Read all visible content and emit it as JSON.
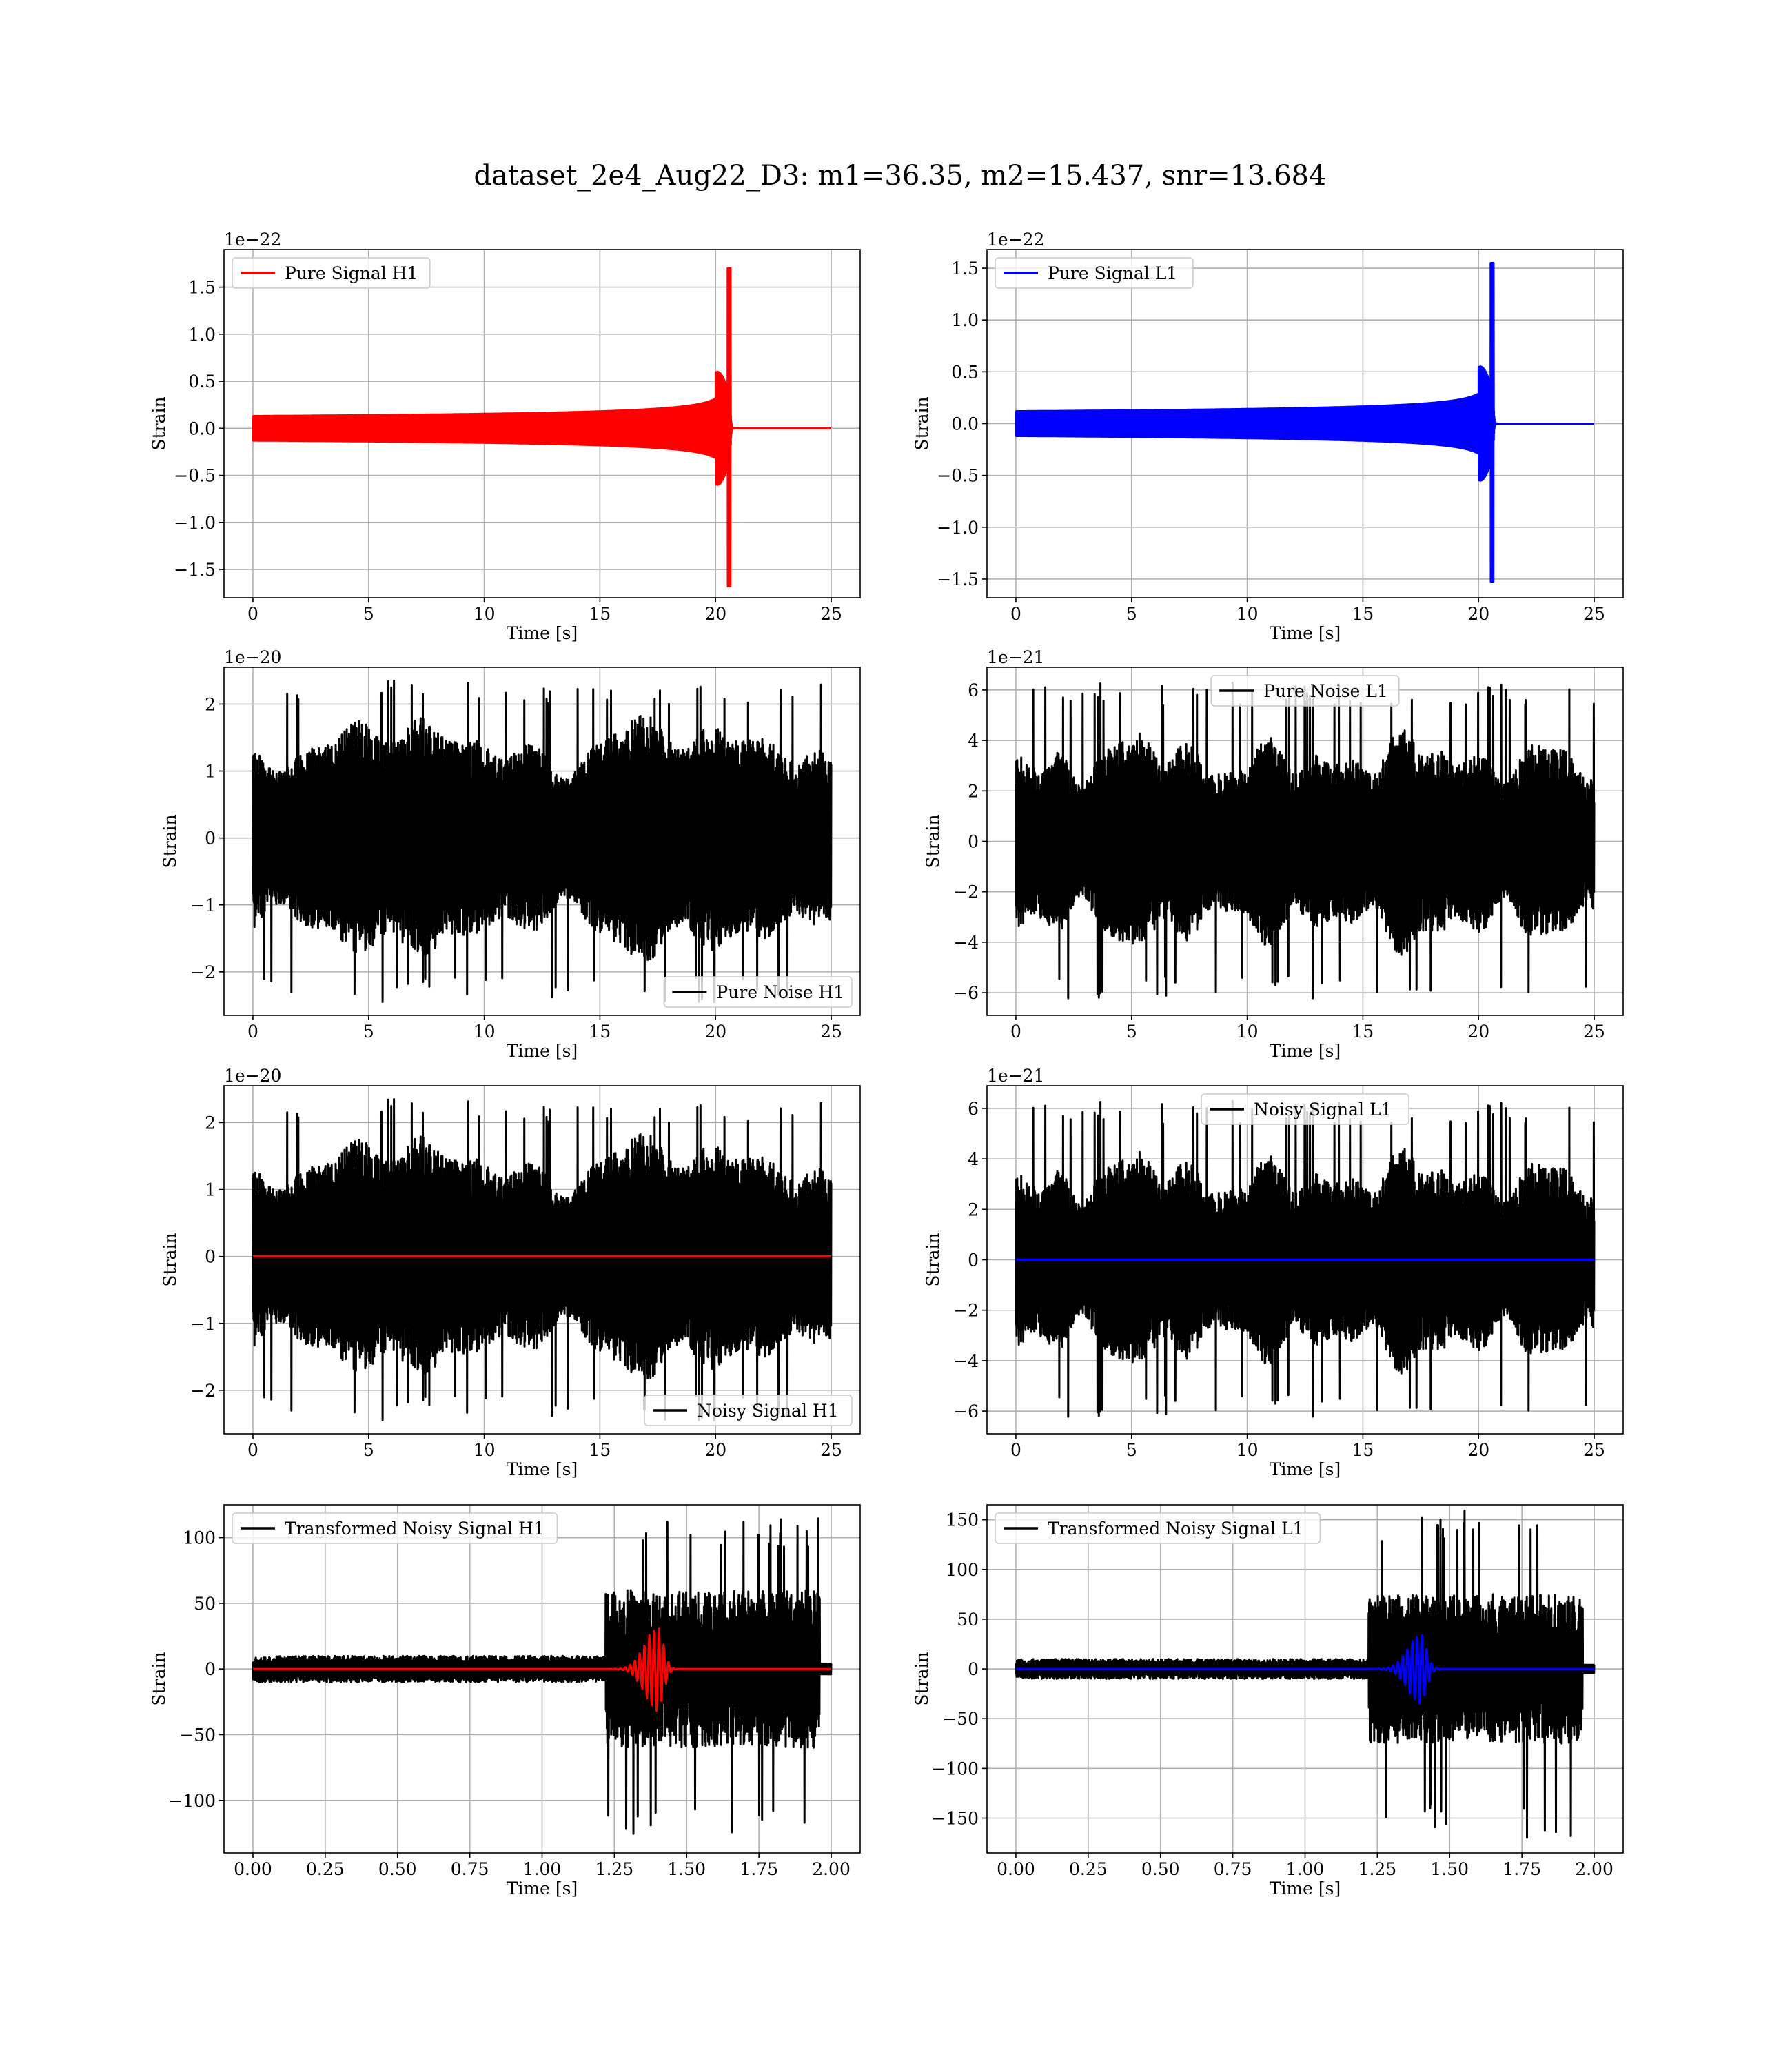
{
  "figure": {
    "suptitle": "dataset_2e4_Aug22_D3: m1=36.35, m2=15.437, snr=13.684"
  },
  "colors": {
    "h1_signal": "#ff0000",
    "l1_signal": "#0000ff",
    "noise": "#000000",
    "grid": "#b0b0b0"
  },
  "chart_data": [
    {
      "id": "pure-signal-h1",
      "type": "line",
      "xlabel": "Time [s]",
      "ylabel": "Strain",
      "offset_text": "1e−22",
      "xlim": [
        -1.25,
        26.25
      ],
      "ylim": [
        -1.8,
        1.9
      ],
      "xticks": [
        0,
        5,
        10,
        15,
        20,
        25
      ],
      "xtick_labels": [
        "0",
        "5",
        "10",
        "15",
        "20",
        "25"
      ],
      "yticks": [
        -1.5,
        -1.0,
        -0.5,
        0.0,
        0.5,
        1.0,
        1.5
      ],
      "ytick_labels": [
        "−1.5",
        "−1.0",
        "−0.5",
        "0.0",
        "0.5",
        "1.0",
        "1.5"
      ],
      "grid": true,
      "legend_position": "upper left",
      "series": [
        {
          "name": "Pure Signal H1",
          "color": "#ff0000",
          "kind": "chirp",
          "x_range": [
            0,
            25
          ],
          "merger_time": 20.6,
          "inspiral_amplitude": 0.6,
          "peak_amplitude": 1.7,
          "peak_min": -1.68,
          "cycles": 260
        }
      ]
    },
    {
      "id": "pure-signal-l1",
      "type": "line",
      "xlabel": "Time [s]",
      "ylabel": "Strain",
      "offset_text": "1e−22",
      "xlim": [
        -1.25,
        26.25
      ],
      "ylim": [
        -1.68,
        1.68
      ],
      "xticks": [
        0,
        5,
        10,
        15,
        20,
        25
      ],
      "xtick_labels": [
        "0",
        "5",
        "10",
        "15",
        "20",
        "25"
      ],
      "yticks": [
        -1.5,
        -1.0,
        -0.5,
        0.0,
        0.5,
        1.0,
        1.5
      ],
      "ytick_labels": [
        "−1.5",
        "−1.0",
        "−0.5",
        "0.0",
        "0.5",
        "1.0",
        "1.5"
      ],
      "grid": true,
      "legend_position": "upper left",
      "series": [
        {
          "name": "Pure Signal L1",
          "color": "#0000ff",
          "kind": "chirp",
          "x_range": [
            0,
            25
          ],
          "merger_time": 20.6,
          "inspiral_amplitude": 0.55,
          "peak_amplitude": 1.55,
          "peak_min": -1.53,
          "cycles": 260
        }
      ]
    },
    {
      "id": "pure-noise-h1",
      "type": "line",
      "xlabel": "Time [s]",
      "ylabel": "Strain",
      "offset_text": "1e−20",
      "xlim": [
        -1.25,
        26.25
      ],
      "ylim": [
        -2.65,
        2.55
      ],
      "xticks": [
        0,
        5,
        10,
        15,
        20,
        25
      ],
      "xtick_labels": [
        "0",
        "5",
        "10",
        "15",
        "20",
        "25"
      ],
      "yticks": [
        -2,
        -1,
        0,
        1,
        2
      ],
      "ytick_labels": [
        "−2",
        "−1",
        "0",
        "1",
        "2"
      ],
      "grid": true,
      "legend_position": "lower right",
      "series": [
        {
          "name": "Pure Noise H1",
          "color": "#000000",
          "kind": "noise",
          "x_range": [
            0,
            25
          ],
          "max": 2.35,
          "min": -2.45,
          "typical_amplitude": 1.2,
          "seed": 11
        }
      ]
    },
    {
      "id": "pure-noise-l1",
      "type": "line",
      "xlabel": "Time [s]",
      "ylabel": "Strain",
      "offset_text": "1e−21",
      "xlim": [
        -1.25,
        26.25
      ],
      "ylim": [
        -6.9,
        6.9
      ],
      "xticks": [
        0,
        5,
        10,
        15,
        20,
        25
      ],
      "xtick_labels": [
        "0",
        "5",
        "10",
        "15",
        "20",
        "25"
      ],
      "yticks": [
        -6,
        -4,
        -2,
        0,
        2,
        4,
        6
      ],
      "ytick_labels": [
        "−6",
        "−4",
        "−2",
        "0",
        "2",
        "4",
        "6"
      ],
      "grid": true,
      "legend_position": "upper center",
      "series": [
        {
          "name": "Pure Noise L1",
          "color": "#000000",
          "kind": "noise",
          "x_range": [
            0,
            25
          ],
          "max": 6.3,
          "min": -6.3,
          "typical_amplitude": 3.0,
          "seed": 23
        }
      ]
    },
    {
      "id": "noisy-signal-h1",
      "type": "line",
      "xlabel": "Time [s]",
      "ylabel": "Strain",
      "offset_text": "1e−20",
      "xlim": [
        -1.25,
        26.25
      ],
      "ylim": [
        -2.65,
        2.55
      ],
      "xticks": [
        0,
        5,
        10,
        15,
        20,
        25
      ],
      "xtick_labels": [
        "0",
        "5",
        "10",
        "15",
        "20",
        "25"
      ],
      "yticks": [
        -2,
        -1,
        0,
        1,
        2
      ],
      "ytick_labels": [
        "−2",
        "−1",
        "0",
        "1",
        "2"
      ],
      "grid": true,
      "legend_position": "lower right",
      "series": [
        {
          "name": "Noisy Signal H1",
          "color": "#000000",
          "kind": "noise",
          "x_range": [
            0,
            25
          ],
          "max": 2.35,
          "min": -2.45,
          "typical_amplitude": 1.2,
          "seed": 11
        },
        {
          "name": "",
          "color": "#ff0000",
          "kind": "flat",
          "x_range": [
            0,
            25
          ],
          "value": 0
        }
      ]
    },
    {
      "id": "noisy-signal-l1",
      "type": "line",
      "xlabel": "Time [s]",
      "ylabel": "Strain",
      "offset_text": "1e−21",
      "xlim": [
        -1.25,
        26.25
      ],
      "ylim": [
        -6.9,
        6.9
      ],
      "xticks": [
        0,
        5,
        10,
        15,
        20,
        25
      ],
      "xtick_labels": [
        "0",
        "5",
        "10",
        "15",
        "20",
        "25"
      ],
      "yticks": [
        -6,
        -4,
        -2,
        0,
        2,
        4,
        6
      ],
      "ytick_labels": [
        "−6",
        "−4",
        "−2",
        "0",
        "2",
        "4",
        "6"
      ],
      "grid": true,
      "legend_position": "upper center",
      "series": [
        {
          "name": "Noisy Signal L1",
          "color": "#000000",
          "kind": "noise",
          "x_range": [
            0,
            25
          ],
          "max": 6.3,
          "min": -6.3,
          "typical_amplitude": 3.0,
          "seed": 23
        },
        {
          "name": "",
          "color": "#0000ff",
          "kind": "flat",
          "x_range": [
            0,
            25
          ],
          "value": 0
        }
      ]
    },
    {
      "id": "transformed-noisy-signal-h1",
      "type": "line",
      "xlabel": "Time [s]",
      "ylabel": "Strain",
      "offset_text": "",
      "xlim": [
        -0.1,
        2.1
      ],
      "ylim": [
        -140,
        125
      ],
      "xticks": [
        0.0,
        0.25,
        0.5,
        0.75,
        1.0,
        1.25,
        1.5,
        1.75,
        2.0
      ],
      "xtick_labels": [
        "0.00",
        "0.25",
        "0.50",
        "0.75",
        "1.00",
        "1.25",
        "1.50",
        "1.75",
        "2.00"
      ],
      "yticks": [
        -100,
        -50,
        0,
        50,
        100
      ],
      "ytick_labels": [
        "−100",
        "−50",
        "0",
        "50",
        "100"
      ],
      "grid": true,
      "legend_position": "upper left",
      "series": [
        {
          "name": "Transformed Noisy Signal H1",
          "color": "#000000",
          "kind": "whitened",
          "x_range": [
            0,
            2
          ],
          "quiet_amplitude": 10,
          "loud_start": 1.22,
          "loud_amplitude": 60,
          "max": 115,
          "min": -128,
          "seed": 37
        },
        {
          "name": "",
          "color": "#ff0000",
          "kind": "burst",
          "x_range": [
            0,
            2
          ],
          "peak_time": 1.4,
          "peak_amplitude": 32
        }
      ]
    },
    {
      "id": "transformed-noisy-signal-l1",
      "type": "line",
      "xlabel": "Time [s]",
      "ylabel": "Strain",
      "offset_text": "",
      "xlim": [
        -0.1,
        2.1
      ],
      "ylim": [
        -185,
        165
      ],
      "xticks": [
        0.0,
        0.25,
        0.5,
        0.75,
        1.0,
        1.25,
        1.5,
        1.75,
        2.0
      ],
      "xtick_labels": [
        "0.00",
        "0.25",
        "0.50",
        "0.75",
        "1.00",
        "1.25",
        "1.50",
        "1.75",
        "2.00"
      ],
      "yticks": [
        -150,
        -100,
        -50,
        0,
        50,
        100,
        150
      ],
      "ytick_labels": [
        "−150",
        "−100",
        "−50",
        "0",
        "50",
        "100",
        "150"
      ],
      "grid": true,
      "legend_position": "upper left",
      "series": [
        {
          "name": "Transformed Noisy Signal L1",
          "color": "#000000",
          "kind": "whitened",
          "x_range": [
            0,
            2
          ],
          "quiet_amplitude": 10,
          "loud_start": 1.22,
          "loud_amplitude": 75,
          "max": 160,
          "min": -170,
          "seed": 53
        },
        {
          "name": "",
          "color": "#0000ff",
          "kind": "burst",
          "x_range": [
            0,
            2
          ],
          "peak_time": 1.4,
          "peak_amplitude": 35
        }
      ]
    }
  ]
}
